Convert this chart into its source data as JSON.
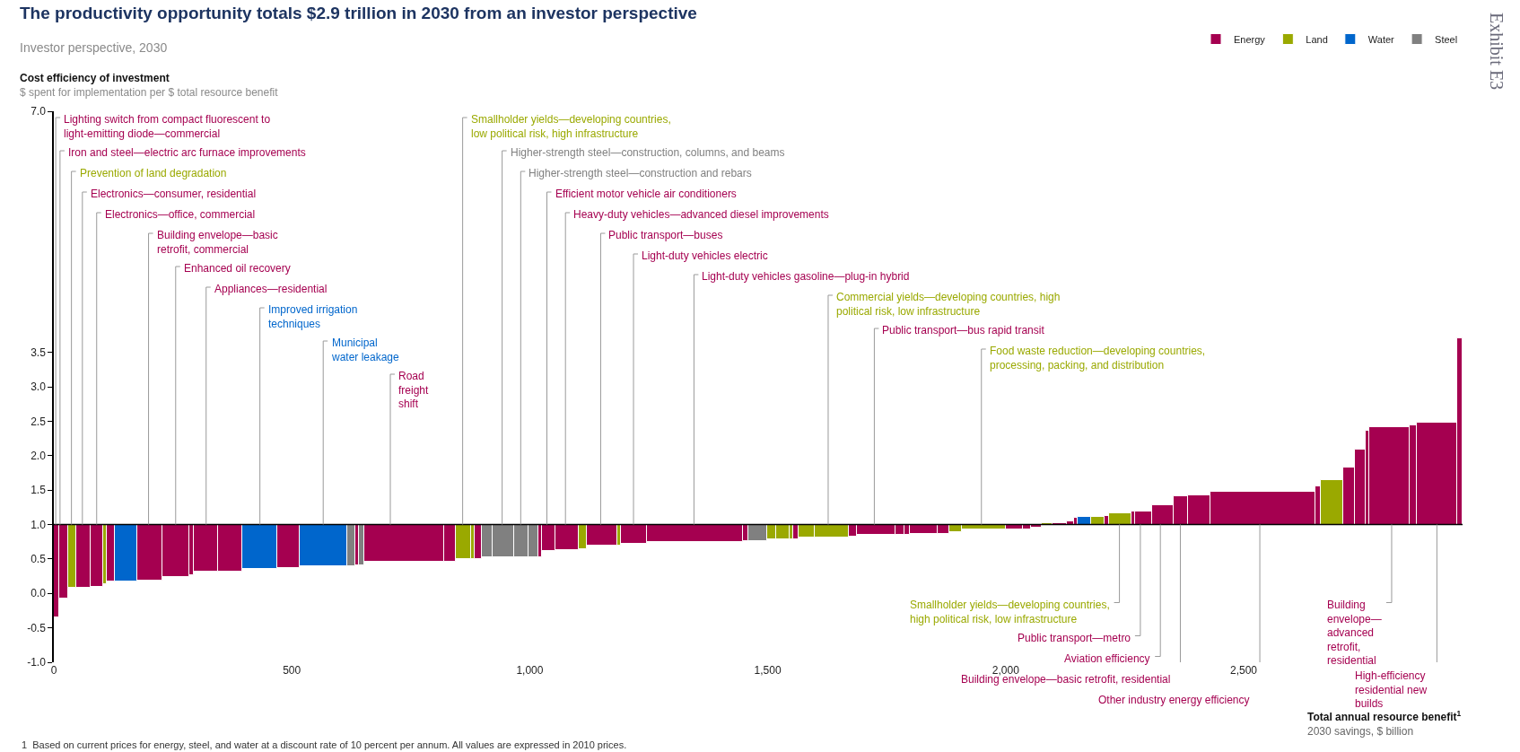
{
  "chart_data": {
    "type": "bar",
    "title": "The productivity opportunity totals $2.9 trillion in 2030 from an investor perspective",
    "subtitle": "Investor perspective, 2030",
    "ylabel": "Cost efficiency of investment\n$ spent for implementation per $ total resource benefit",
    "xlabel": "Total annual resource benefit$^{1}$\n2030 savings, $ billion",
    "legend": "top right",
    "xlim": [
      0,
      2960
    ],
    "xticks": [
      0,
      500,
      {
        "value": 1000,
        "label": "1,000"
      },
      {
        "value": 1500,
        "label": "1,500"
      },
      {
        "value": 2000,
        "label": "2,000"
      },
      {
        "value": 2500,
        "label": "2,500"
      }
    ],
    "ylim": [
      -1,
      7
    ],
    "yticks": [
      {
        "value": -1,
        "label": "-1.0"
      },
      -0.5,
      {
        "value": 0,
        "label": "0.0"
      },
      0.5,
      {
        "value": 1,
        "label": "1.0"
      },
      1.5,
      {
        "value": 2,
        "label": "2.0"
      },
      2.5,
      {
        "value": 3,
        "label": "3.0"
      },
      3.5,
      {
        "value": 7,
        "label": "7.0"
      }
    ],
    "ref_lines": [
      {
        "axis": "y",
        "value": 1,
        "color": "#000000"
      }
    ],
    "series": [
      {
        "name": "Energy",
        "color": "#a50050",
        "x": [
          5.5,
          21,
          62,
          90,
          120.5,
          202,
          257,
          290,
          320,
          370.5,
          493,
          637,
          736,
          832,
          892.5,
          1022,
          1039.5,
          1078,
          1151.5,
          1219.5,
          1347.5,
          1454,
          1559,
          1679,
          1728,
          1778,
          1793,
          1828,
          1869,
          2019,
          2045,
          2064.5,
          2113,
          2136,
          2147.5,
          2212.5,
          2267.5,
          2289.5,
          2330.5,
          2368.5,
          2407.5,
          2541,
          2656.5,
          2721,
          2744.5,
          2760,
          2806,
          2856,
          2906,
          2954
        ],
        "base": [
          1,
          1,
          1,
          1,
          1,
          1,
          1,
          1,
          1,
          1,
          1,
          1,
          1,
          1,
          1,
          1,
          1,
          1,
          1,
          1,
          1,
          1,
          1,
          1,
          1,
          1,
          1,
          1,
          1,
          1,
          1,
          1,
          1,
          1,
          1,
          1,
          1,
          1,
          1,
          1,
          1,
          1,
          1,
          1,
          1,
          1,
          1,
          1,
          1,
          1
        ],
        "values": [
          -1.35,
          -1.08,
          -0.92,
          -0.9,
          -0.83,
          -0.81,
          -0.76,
          -0.74,
          -0.69,
          -0.69,
          -0.63,
          -0.59,
          -0.54,
          -0.54,
          -0.5,
          -0.47,
          -0.39,
          -0.37,
          -0.3,
          -0.28,
          -0.26,
          -0.24,
          -0.21,
          -0.18,
          -0.15,
          -0.15,
          -0.15,
          -0.14,
          -0.14,
          -0.07,
          -0.07,
          -0.04,
          0.02,
          0.04,
          0.1,
          0.12,
          0.19,
          0.19,
          0.28,
          0.41,
          0.43,
          0.47,
          0.56,
          0.83,
          1.09,
          1.36,
          1.42,
          1.44,
          1.48,
          2.7
        ]
      },
      {
        "name": "Land",
        "color": "#9aa900",
        "x": [
          39,
          107.5,
          860.5,
          881,
          1111,
          1188,
          1508,
          1531.5,
          1550,
          1581.5,
          1635,
          1894.5,
          1954.5,
          2087,
          2194,
          2240.5,
          2685.5
        ],
        "base": [
          1,
          1,
          1,
          1,
          1,
          1,
          1,
          1,
          1,
          1,
          1,
          1,
          1,
          1,
          1,
          1,
          1
        ],
        "values": [
          -0.92,
          -0.86,
          -0.5,
          -0.5,
          -0.36,
          -0.3,
          -0.22,
          -0.22,
          -0.21,
          -0.19,
          -0.19,
          -0.11,
          -0.07,
          0.02,
          0.11,
          0.16,
          0.65
        ]
      },
      {
        "name": "Water",
        "color": "#0066cc",
        "x": [
          152,
          433,
          566,
          2165.5
        ],
        "base": [
          1,
          1,
          1,
          1
        ],
        "values": [
          -0.83,
          -0.65,
          -0.61,
          0.11
        ]
      },
      {
        "name": "Steel",
        "color": "#808080",
        "x": [
          624.5,
          646.5,
          910.5,
          944.5,
          983,
          1008,
          1479.5
        ],
        "base": [
          1,
          1,
          1,
          1,
          1,
          1,
          1
        ],
        "values": [
          -0.61,
          -0.59,
          -0.48,
          -0.48,
          -0.48,
          -0.48,
          -0.24
        ]
      }
    ],
    "annotations": [
      {
        "text": "Lighting switch from compact fluorescent to\nlight-emitting diode—commercial",
        "x": 4,
        "y": 1
      },
      {
        "text": "Iron and steel—electric arc furnace improvements",
        "x": 13,
        "y": 1
      },
      {
        "text": "Prevention of land degradation",
        "x": 37,
        "y": 1
      },
      {
        "text": "Electronics—consumer, residential",
        "x": 60,
        "y": 1
      },
      {
        "text": "Electronics—office, commercial",
        "x": 90,
        "y": 1
      },
      {
        "text": "Building envelope—basic\nretrofit, commercial",
        "x": 199,
        "y": 1
      },
      {
        "text": "Enhanced oil recovery",
        "x": 256,
        "y": 1
      },
      {
        "text": "Appliances—residential",
        "x": 320,
        "y": 1
      },
      {
        "text": "Improved irrigation\ntechniques",
        "x": 433,
        "y": 1
      },
      {
        "text": "Municipal\nwater leakage",
        "x": 566,
        "y": 1
      },
      {
        "text": "Road\nfreight\nshift",
        "x": 707,
        "y": 1
      },
      {
        "text": "Smallholder yields—developing countries,\nlow political risk, high infrastructure",
        "x": 859,
        "y": 1
      },
      {
        "text": "Higher-strength steel—construction, columns, and beams",
        "x": 942,
        "y": 1
      },
      {
        "text": "Higher-strength steel—construction and rebars",
        "x": 981,
        "y": 1
      },
      {
        "text": "Efficient motor vehicle air conditioners",
        "x": 1036,
        "y": 1
      },
      {
        "text": "Heavy-duty vehicles—advanced diesel improvements",
        "x": 1075,
        "y": 1
      },
      {
        "text": "Public transport—buses",
        "x": 1149,
        "y": 1
      },
      {
        "text": "Light-duty vehicles electric",
        "x": 1218,
        "y": 1
      },
      {
        "text": "Light-duty vehicles gasoline—plug-in hybrid",
        "x": 1345,
        "y": 1
      },
      {
        "text": "Commercial yields—developing countries, high\npolitical risk, low infrastructure",
        "x": 1627,
        "y": 1
      },
      {
        "text": "Public transport—bus rapid transit",
        "x": 1724,
        "y": 1
      },
      {
        "text": "Food waste reduction—developing countries,\nprocessing, packing, and distribution",
        "x": 1949,
        "y": 1
      },
      {
        "text": "Smallholder yields—developing countries,\nhigh political risk, low infrastructure",
        "x": 2239,
        "y": 1
      },
      {
        "text": "Public transport—metro",
        "x": 2283,
        "y": 1
      },
      {
        "text": "Aviation efficiency",
        "x": 2325,
        "y": 1
      },
      {
        "text": "Building envelope—basic retrofit, residential",
        "x": 2367,
        "y": 1
      },
      {
        "text": "Other industry energy efficiency",
        "x": 2534,
        "y": 1
      },
      {
        "text": "Building\nenvelope—\nadvanced\nretrofit,\nresidential",
        "x": 2811,
        "y": 1
      },
      {
        "text": "High-efficiency\nresidential new\nbuilds",
        "x": 2906,
        "y": 1
      },
      "1  Based on current prices for energy, steel, and water at a discount rate of 10 percent per annum. All values are expressed in 2010 prices.",
      "Exhibit E3"
    ]
  }
}
